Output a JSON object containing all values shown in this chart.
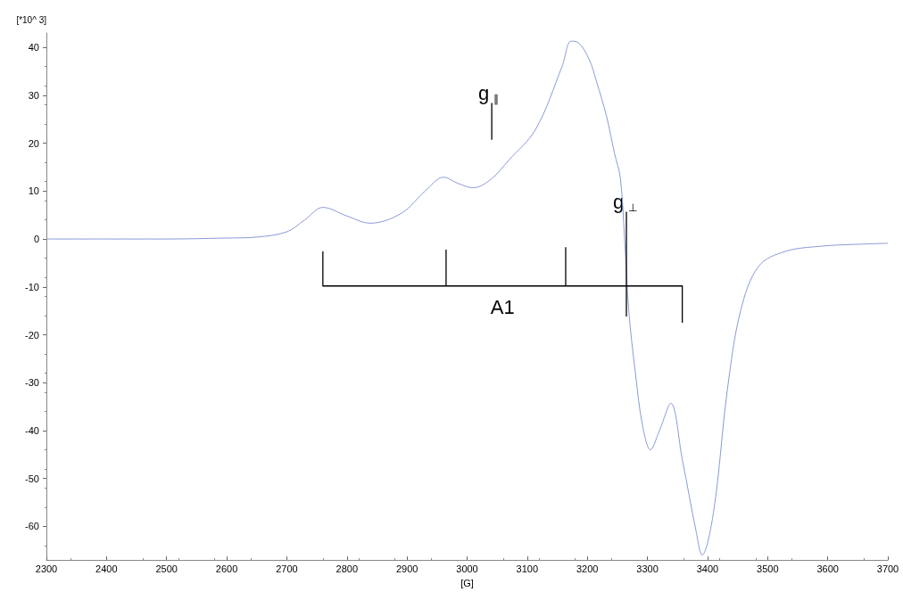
{
  "chart_data": {
    "type": "line",
    "xlabel": "[G]",
    "ylabel": "[*10^ 3]",
    "xlim": [
      2300,
      3700
    ],
    "xticks": [
      2300,
      2400,
      2500,
      2600,
      2700,
      2800,
      2900,
      3000,
      3100,
      3200,
      3300,
      3400,
      3500,
      3600,
      3700
    ],
    "ylim": [
      -67,
      43
    ],
    "yticks": [
      -60,
      -50,
      -40,
      -30,
      -20,
      -10,
      0,
      10,
      20,
      30,
      40
    ],
    "marker": "none",
    "line_style": "solid",
    "series": [
      {
        "color": "#8a9ad6",
        "x": [
          2300,
          2400,
          2500,
          2600,
          2650,
          2700,
          2730,
          2760,
          2800,
          2839,
          2891,
          2930,
          2961,
          2985,
          3010,
          3040,
          3069,
          3114,
          3158,
          3173,
          3185,
          3203,
          3215,
          3232,
          3245,
          3255,
          3262,
          3269,
          3280,
          3292,
          3305,
          3320,
          3339,
          3358,
          3381,
          3391,
          3410,
          3433,
          3455,
          3485,
          3529,
          3589,
          3650,
          3700
        ],
        "values": [
          0,
          0,
          0,
          0.2,
          0.4,
          1.5,
          4,
          6.6,
          4.8,
          3.3,
          5.4,
          10,
          12.9,
          11.6,
          10.7,
          12.5,
          16.4,
          22.9,
          36,
          41.3,
          41,
          37.5,
          33,
          25.6,
          18,
          12.7,
          0,
          -15,
          -28,
          -39,
          -44,
          -40,
          -34.3,
          -46,
          -61,
          -66,
          -57,
          -31.5,
          -15,
          -5.7,
          -2.6,
          -1.5,
          -1.1,
          -0.9
        ]
      },
      {
        "color": "#000000",
        "x": [
          2760,
          2760,
          3358,
          3358
        ],
        "values": [
          -2.6,
          -9.8,
          -9.8,
          -17.5
        ]
      },
      {
        "color": "#000000",
        "x": [
          2965,
          2965
        ],
        "values": [
          -2.2,
          -9.8
        ]
      },
      {
        "color": "#000000",
        "x": [
          3164,
          3164
        ],
        "values": [
          -1.7,
          -9.8
        ]
      },
      {
        "color": "#000000",
        "x": [
          3041,
          3041
        ],
        "values": [
          28.4,
          20.7
        ]
      },
      {
        "color": "#000000",
        "x": [
          3265,
          3265
        ],
        "values": [
          5.7,
          -16.2
        ]
      }
    ],
    "annotations": [
      {
        "text": "g$_{∥}$",
        "x": 3041,
        "y": 28.4
      },
      {
        "text": "g$_{⊥}$",
        "x": 3265,
        "y": 5.7
      },
      {
        "text": "A1",
        "x": 3059,
        "y": -9.8
      }
    ]
  }
}
